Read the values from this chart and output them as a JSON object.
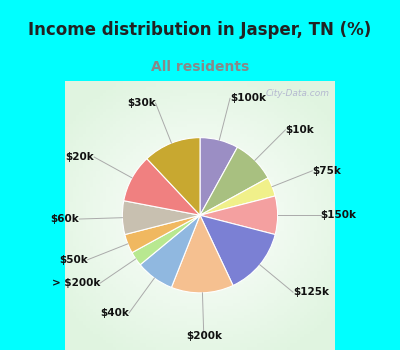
{
  "title": "Income distribution in Jasper, TN (%)",
  "subtitle": "All residents",
  "title_color": "#222222",
  "subtitle_color": "#888888",
  "bg_top_color": "#00FFFF",
  "chart_bg_color": "#d8f0e0",
  "segments": [
    {
      "label": "$100k",
      "value": 8,
      "color": "#9b8ec4"
    },
    {
      "label": "$10k",
      "value": 9,
      "color": "#a8c080"
    },
    {
      "label": "$75k",
      "value": 4,
      "color": "#f0f08a"
    },
    {
      "label": "$150k",
      "value": 8,
      "color": "#f4a0a0"
    },
    {
      "label": "$125k",
      "value": 14,
      "color": "#7b80d4"
    },
    {
      "label": "$200k",
      "value": 13,
      "color": "#f5c090"
    },
    {
      "label": "$40k",
      "value": 8,
      "color": "#90b8e0"
    },
    {
      "label": "> $200k",
      "value": 3,
      "color": "#b8e890"
    },
    {
      "label": "$50k",
      "value": 4,
      "color": "#f0b860"
    },
    {
      "label": "$60k",
      "value": 7,
      "color": "#c8c0b0"
    },
    {
      "label": "$20k",
      "value": 10,
      "color": "#f08080"
    },
    {
      "label": "$30k",
      "value": 12,
      "color": "#c8a830"
    }
  ],
  "title_fontsize": 12,
  "subtitle_fontsize": 10,
  "label_fontsize": 7.5,
  "watermark": "City-Data.com",
  "watermark_color": "#aaaacc",
  "label_color": "#111111"
}
